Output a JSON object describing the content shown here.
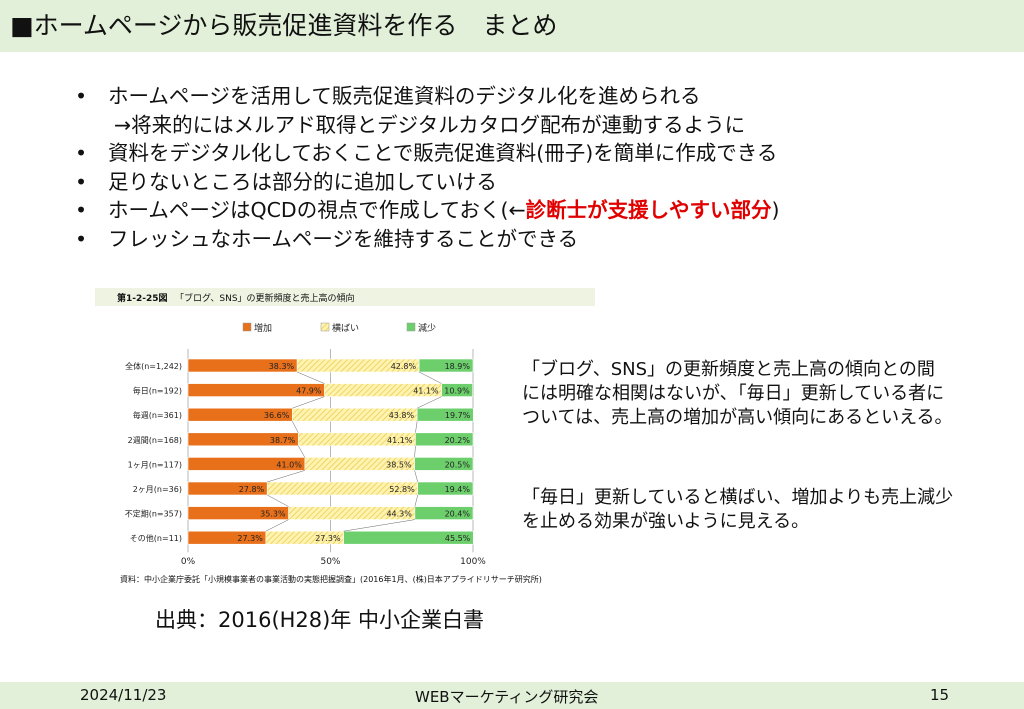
{
  "slide": {
    "title": "■ホームページから販売促進資料を作る　まとめ",
    "bullets": [
      {
        "text": "ホームページを活用して販売促進資料のデジタル化を進められる",
        "sub": "→将来的にはメルアド取得とデジタルカタログ配布が連動するように"
      },
      {
        "text": "資料をデジタル化しておくことで販売促進資料(冊子)を簡単に作成できる"
      },
      {
        "text": "足りないところは部分的に追加していける"
      },
      {
        "text_before": "ホームページはQCDの視点で作成しておく(←",
        "highlight": "診断士が支援しやすい部分",
        "text_after": ")"
      },
      {
        "text": "フレッシュなホームページを維持することができる"
      }
    ],
    "bullet_symbol": "•",
    "right_text_1": [
      "「ブログ、SNS」の更新頻度と売上高の傾向との間",
      "には明確な相関はないが、「毎日」更新している者に",
      "ついては、売上高の増加が高い傾向にあるといえる。"
    ],
    "right_text_2": [
      "「毎日」更新していると横ばい、増加よりも売上減少",
      "を止める効果が強いように見える。"
    ],
    "citation": "出典：2016(H28)年 中小企業白書",
    "footer": {
      "date": "2024/11/23",
      "center": "WEBマーケティング研究会",
      "page": "15"
    }
  },
  "chart_meta": {
    "fig_no": "第1-2-25図",
    "fig_title": "「ブログ、SNS」の更新頻度と売上高の傾向",
    "source": "資料：中小企業庁委託「小規模事業者の事業活動の実態把握調査」(2016年1月、(株)日本アプライドリサーチ研究所)"
  },
  "chart_data": {
    "type": "bar",
    "orientation": "horizontal",
    "stacked": "percent",
    "title": "「ブログ、SNS」の更新頻度と売上高の傾向",
    "categories": [
      "全体(n=1,242)",
      "毎日(n=192)",
      "毎週(n=361)",
      "2週間(n=168)",
      "1ヶ月(n=117)",
      "2ヶ月(n=36)",
      "不定期(n=357)",
      "その他(n=11)"
    ],
    "series": [
      {
        "name": "増加",
        "color": "#e8701a",
        "values": [
          38.3,
          47.9,
          36.6,
          38.7,
          41.0,
          27.8,
          35.3,
          27.3
        ]
      },
      {
        "name": "横ばい",
        "color": "#ffe88a",
        "values": [
          42.8,
          41.1,
          43.8,
          41.1,
          38.5,
          52.8,
          44.3,
          27.3
        ]
      },
      {
        "name": "減少",
        "color": "#6ccf6c",
        "values": [
          18.9,
          10.9,
          19.7,
          20.2,
          20.5,
          19.4,
          20.4,
          45.5
        ]
      }
    ],
    "value_labels": [
      [
        "38.3%",
        "42.8%",
        "18.9%"
      ],
      [
        "47.9%",
        "41.1%",
        "10.9%"
      ],
      [
        "36.6%",
        "43.8%",
        "19.7%"
      ],
      [
        "38.7%",
        "41.1%",
        "20.2%"
      ],
      [
        "41.0%",
        "38.5%",
        "20.5%"
      ],
      [
        "27.8%",
        "52.8%",
        "19.4%"
      ],
      [
        "35.3%",
        "44.3%",
        "20.4%"
      ],
      [
        "27.3%",
        "27.3%",
        "45.5%"
      ]
    ],
    "x_ticks": [
      "0%",
      "50%",
      "100%"
    ],
    "xlim": [
      0,
      100
    ],
    "legend_position": "top"
  }
}
